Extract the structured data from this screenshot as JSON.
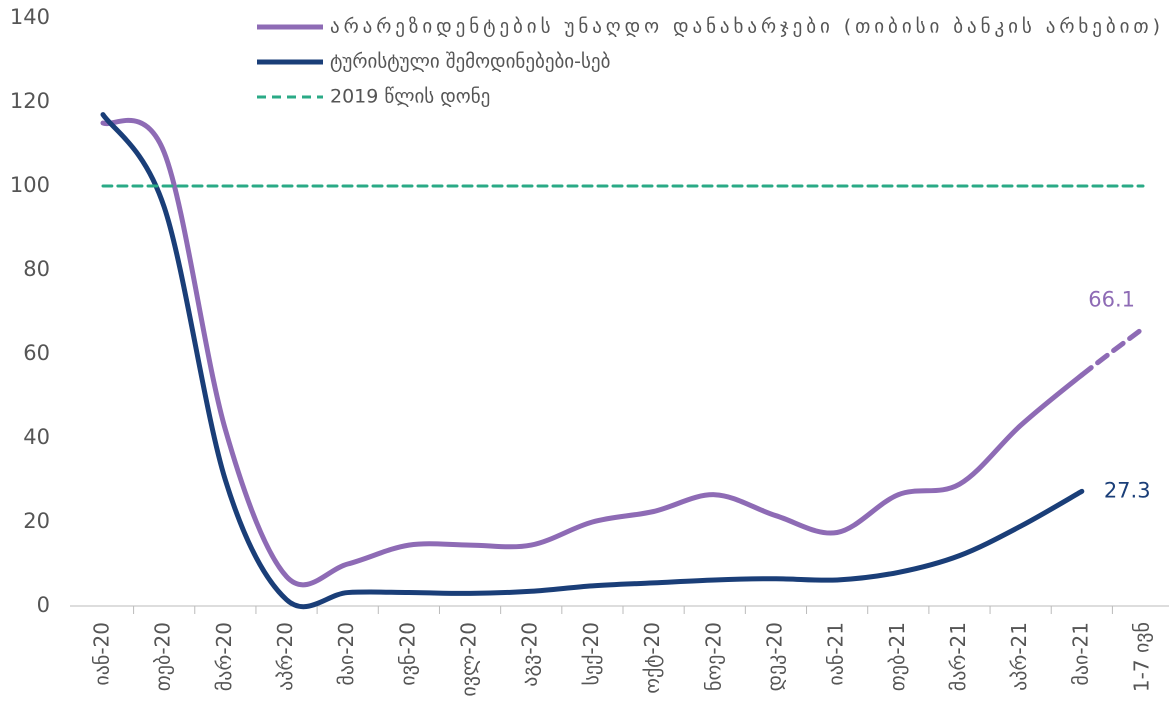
{
  "chart_data": {
    "type": "line",
    "categories": [
      "იან-20",
      "თებ-20",
      "მარ-20",
      "აპრ-20",
      "მაი-20",
      "ივნ-20",
      "ივლ-20",
      "აგვ-20",
      "სექ-20",
      "ოქტ-20",
      "ნოე-20",
      "დეკ-20",
      "იან-21",
      "თებ-21",
      "მარ-21",
      "აპრ-21",
      "მაი-21",
      "1-7 ივნ"
    ],
    "series": [
      {
        "name": "არარეზიდენტების უნაღდო დანახარჯები (თიბისი ბანკის არხებით)",
        "color": "#8e6bb5",
        "values": [
          115,
          108,
          42,
          7,
          10,
          14.5,
          14.5,
          14.5,
          20,
          22.5,
          26.5,
          21.5,
          17.5,
          26.5,
          29,
          43,
          55,
          66.1
        ],
        "value_labels": [
          null,
          null,
          null,
          null,
          null,
          null,
          null,
          null,
          null,
          null,
          null,
          null,
          null,
          null,
          null,
          null,
          null,
          "66.1"
        ],
        "dashed_from": 16
      },
      {
        "name": "ტურისტული შემოდინებები-სებ",
        "color": "#1a3e78",
        "values": [
          117,
          95,
          30,
          1.5,
          3.2,
          3.2,
          3,
          3.5,
          4.8,
          5.5,
          6.2,
          6.5,
          6.2,
          8,
          12,
          19,
          27.3,
          null
        ],
        "value_labels": [
          null,
          null,
          null,
          null,
          null,
          null,
          null,
          null,
          null,
          null,
          null,
          null,
          null,
          null,
          null,
          null,
          "27.3",
          null
        ]
      },
      {
        "name": "2019 წლის დონე",
        "color": "#2aaa86",
        "dashed": true,
        "values": [
          100,
          100,
          100,
          100,
          100,
          100,
          100,
          100,
          100,
          100,
          100,
          100,
          100,
          100,
          100,
          100,
          100,
          100
        ]
      }
    ],
    "ylim": [
      0,
      140
    ],
    "yticks": [
      0,
      20,
      40,
      60,
      80,
      100,
      120,
      140
    ],
    "grid": false
  }
}
